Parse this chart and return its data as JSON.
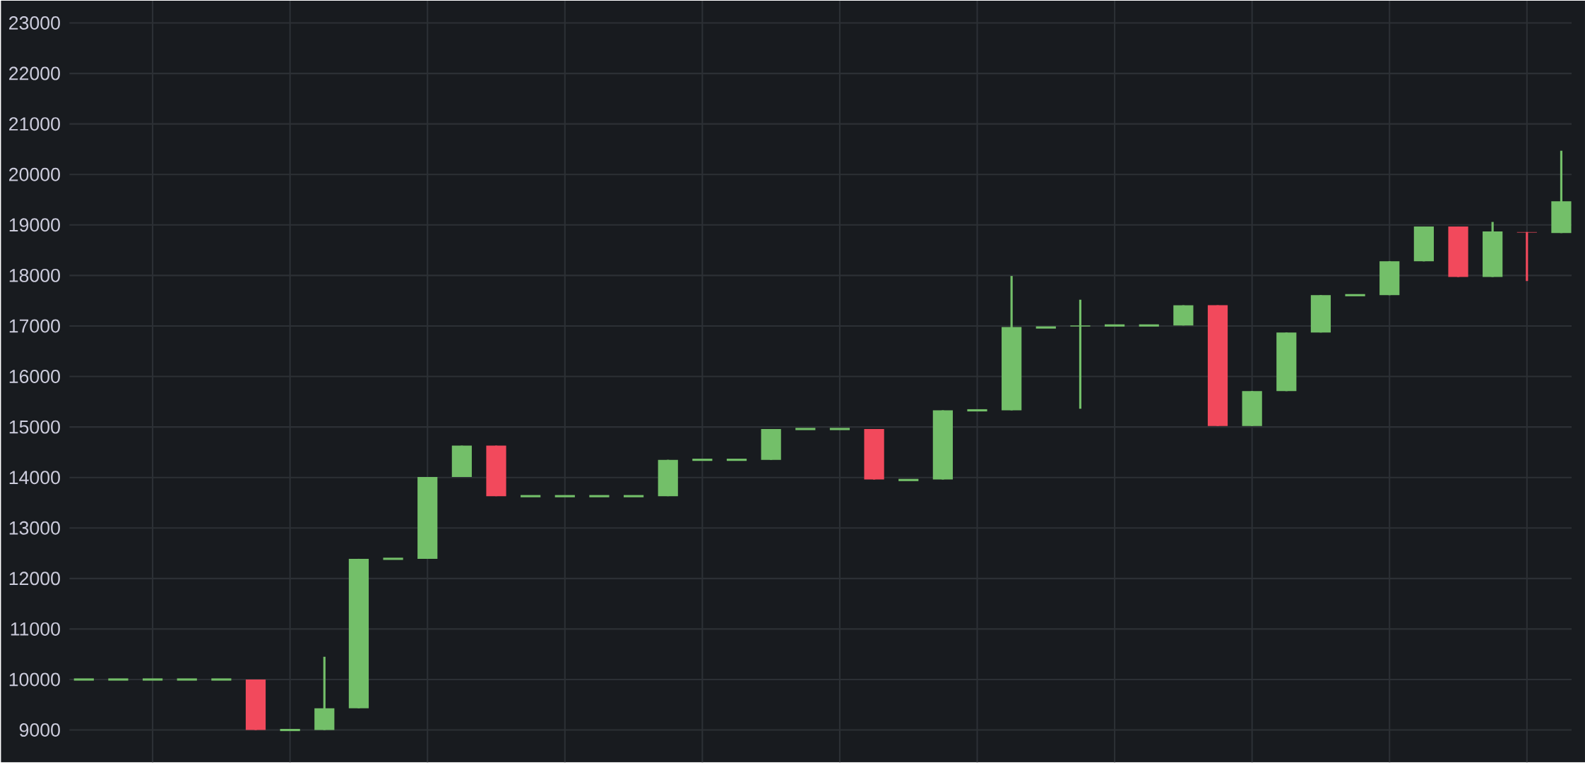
{
  "chart_data": {
    "type": "candlestick",
    "categories": [
      null,
      null,
      null,
      null,
      null,
      null,
      null,
      null,
      null,
      null,
      null,
      null,
      null,
      null,
      null,
      null,
      null,
      null,
      null,
      null,
      null,
      null,
      null,
      null,
      null,
      null,
      null,
      null,
      null,
      null,
      null,
      null,
      null,
      null,
      null,
      null,
      null,
      null,
      null,
      null,
      null,
      null,
      null,
      null
    ],
    "ohlc": [
      [
        10000,
        10000,
        10000,
        10000
      ],
      [
        10000,
        10000,
        10000,
        10000
      ],
      [
        10000,
        10000,
        10000,
        10000
      ],
      [
        10000,
        10000,
        10000,
        10000
      ],
      [
        10000,
        10000,
        10000,
        10000
      ],
      [
        10000,
        10000,
        9000,
        9000
      ],
      [
        9000,
        9000,
        9000,
        9000
      ],
      [
        9000,
        10450,
        9000,
        9430
      ],
      [
        9430,
        12390,
        9430,
        12390
      ],
      [
        12390,
        12390,
        12390,
        12390
      ],
      [
        12390,
        14010,
        12390,
        14010
      ],
      [
        14010,
        14630,
        14010,
        14630
      ],
      [
        14630,
        14630,
        13630,
        13630
      ],
      [
        13630,
        13630,
        13630,
        13630
      ],
      [
        13630,
        13630,
        13630,
        13630
      ],
      [
        13630,
        13630,
        13630,
        13630
      ],
      [
        13630,
        13630,
        13630,
        13630
      ],
      [
        13630,
        14350,
        13630,
        14350
      ],
      [
        14350,
        14350,
        14350,
        14350
      ],
      [
        14350,
        14350,
        14350,
        14350
      ],
      [
        14350,
        14960,
        14350,
        14960
      ],
      [
        14960,
        14960,
        14960,
        14960
      ],
      [
        14960,
        14960,
        14960,
        14960
      ],
      [
        14960,
        14960,
        13960,
        13960
      ],
      [
        13950,
        13950,
        13950,
        13950
      ],
      [
        13960,
        15330,
        13960,
        15330
      ],
      [
        15330,
        15330,
        15330,
        15330
      ],
      [
        15330,
        17990,
        15330,
        16980
      ],
      [
        16970,
        16970,
        16970,
        16970
      ],
      [
        16990,
        17520,
        15360,
        17010
      ],
      [
        17010,
        17010,
        17010,
        17010
      ],
      [
        17010,
        17010,
        17010,
        17010
      ],
      [
        17010,
        17410,
        17010,
        17410
      ],
      [
        17410,
        17410,
        15020,
        15020
      ],
      [
        15020,
        15710,
        15020,
        15710
      ],
      [
        15710,
        16870,
        15710,
        16870
      ],
      [
        16870,
        17610,
        16870,
        17610
      ],
      [
        17610,
        17610,
        17610,
        17610
      ],
      [
        17610,
        18280,
        17610,
        18280
      ],
      [
        18280,
        18970,
        18280,
        18970
      ],
      [
        18970,
        18970,
        17970,
        17970
      ],
      [
        17970,
        19060,
        17970,
        18870
      ],
      [
        18860,
        18860,
        17890,
        18850
      ],
      [
        18840,
        20470,
        18840,
        19470
      ]
    ],
    "colors": [
      "#73bf69",
      "#73bf69",
      "#73bf69",
      "#73bf69",
      "#73bf69",
      "#f2495c",
      "#73bf69",
      "#73bf69",
      "#73bf69",
      "#73bf69",
      "#73bf69",
      "#73bf69",
      "#f2495c",
      "#73bf69",
      "#73bf69",
      "#73bf69",
      "#73bf69",
      "#73bf69",
      "#73bf69",
      "#73bf69",
      "#73bf69",
      "#73bf69",
      "#73bf69",
      "#f2495c",
      "#73bf69",
      "#73bf69",
      "#73bf69",
      "#73bf69",
      "#73bf69",
      "#73bf69",
      "#73bf69",
      "#73bf69",
      "#73bf69",
      "#f2495c",
      "#73bf69",
      "#73bf69",
      "#73bf69",
      "#73bf69",
      "#73bf69",
      "#73bf69",
      "#f2495c",
      "#73bf69",
      "#f2495c",
      "#73bf69"
    ],
    "ylim": [
      8360,
      23440
    ],
    "yticks": [
      9000,
      10000,
      11000,
      12000,
      13000,
      14000,
      15000,
      16000,
      17000,
      18000,
      19000,
      20000,
      21000,
      22000,
      23000
    ],
    "grid": true,
    "tick_labels": "y"
  }
}
